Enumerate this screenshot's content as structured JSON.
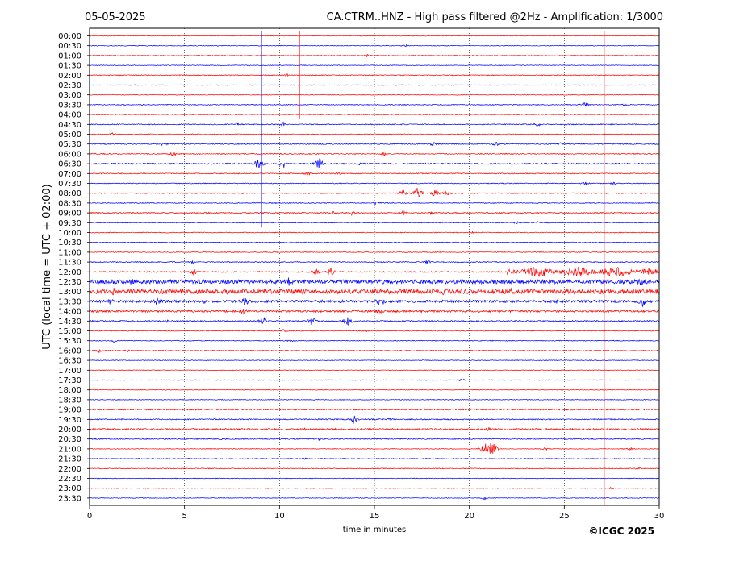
{
  "header": {
    "date": "05-05-2025",
    "title": "CA.CTRM..HNZ - High pass filtered @2Hz - Amplification: 1/3000"
  },
  "footer": {
    "copyright": "©ICGC 2025"
  },
  "colors": {
    "trace_red": "#ff0000",
    "trace_blue": "#0000ff",
    "grid": "#000000",
    "background": "#ffffff"
  },
  "chart_data": {
    "type": "line",
    "title": "CA.CTRM..HNZ - High pass filtered @2Hz - Amplification: 1/3000",
    "xlabel": "time in minutes",
    "ylabel": "UTC (local time = UTC + 02:00)",
    "xlim": [
      0,
      30
    ],
    "x_ticks": [
      "0",
      "5",
      "10",
      "15",
      "20",
      "25",
      "30"
    ],
    "x_tick_values": [
      0,
      5,
      10,
      15,
      20,
      25,
      30
    ],
    "x_grid": true,
    "row_colors": [
      "red",
      "blue"
    ],
    "rows": [
      {
        "label": "00:00",
        "noise": 0.4,
        "events": []
      },
      {
        "label": "00:30",
        "noise": 0.4,
        "events": [
          [
            16.6,
            2
          ]
        ]
      },
      {
        "label": "01:00",
        "noise": 0.4,
        "events": [
          [
            14.6,
            2
          ]
        ]
      },
      {
        "label": "01:30",
        "noise": 0.4,
        "events": []
      },
      {
        "label": "02:00",
        "noise": 0.5,
        "events": [
          [
            10.4,
            2
          ]
        ]
      },
      {
        "label": "02:30",
        "noise": 0.4,
        "events": []
      },
      {
        "label": "03:00",
        "noise": 0.4,
        "events": []
      },
      {
        "label": "03:30",
        "noise": 0.5,
        "events": [
          [
            26.1,
            4
          ],
          [
            28.2,
            2
          ]
        ]
      },
      {
        "label": "04:00",
        "noise": 0.4,
        "events": []
      },
      {
        "label": "04:30",
        "noise": 0.6,
        "events": [
          [
            7.8,
            3
          ],
          [
            10.2,
            3
          ],
          [
            23.6,
            3
          ]
        ]
      },
      {
        "label": "05:00",
        "noise": 0.5,
        "events": [
          [
            1.2,
            2
          ]
        ]
      },
      {
        "label": "05:30",
        "noise": 0.6,
        "events": [
          [
            3.9,
            3
          ],
          [
            18.1,
            3
          ],
          [
            21.4,
            3
          ],
          [
            24.8,
            2
          ]
        ]
      },
      {
        "label": "06:00",
        "noise": 0.6,
        "events": [
          [
            4.4,
            4
          ],
          [
            15.5,
            3
          ]
        ]
      },
      {
        "label": "06:30",
        "noise": 0.8,
        "events": [
          [
            8.9,
            9
          ],
          [
            10.2,
            6
          ],
          [
            12.1,
            9
          ],
          [
            14.2,
            2
          ]
        ]
      },
      {
        "label": "07:00",
        "noise": 0.6,
        "events": [
          [
            11.5,
            3
          ],
          [
            13.1,
            2
          ]
        ]
      },
      {
        "label": "07:30",
        "noise": 0.5,
        "events": [
          [
            26.1,
            3
          ],
          [
            27.6,
            2
          ]
        ]
      },
      {
        "label": "08:00",
        "noise": 0.6,
        "events": [
          [
            16.5,
            5
          ],
          [
            17.3,
            9
          ],
          [
            18.2,
            5
          ],
          [
            18.8,
            4
          ]
        ]
      },
      {
        "label": "08:30",
        "noise": 0.5,
        "events": [
          [
            15.0,
            3
          ],
          [
            29.6,
            2
          ]
        ]
      },
      {
        "label": "09:00",
        "noise": 0.7,
        "events": [
          [
            12.8,
            3
          ],
          [
            13.8,
            3
          ],
          [
            16.5,
            3
          ],
          [
            18.0,
            3
          ]
        ]
      },
      {
        "label": "09:30",
        "noise": 0.5,
        "events": [
          [
            22.5,
            2
          ],
          [
            23.6,
            2
          ]
        ]
      },
      {
        "label": "10:00",
        "noise": 0.5,
        "events": [
          [
            20.1,
            2
          ]
        ]
      },
      {
        "label": "10:30",
        "noise": 0.5,
        "events": []
      },
      {
        "label": "11:00",
        "noise": 0.5,
        "events": []
      },
      {
        "label": "11:30",
        "noise": 0.6,
        "events": [
          [
            5.4,
            2
          ],
          [
            17.8,
            3
          ]
        ]
      },
      {
        "label": "12:00",
        "noise": 0.7,
        "events": [
          [
            5.5,
            5
          ],
          [
            11.9,
            5
          ],
          [
            12.7,
            6
          ],
          [
            22.0,
            6,
            30.0
          ]
        ]
      },
      {
        "label": "12:30",
        "noise": 2.5,
        "events": [
          [
            2.2,
            5
          ],
          [
            10.5,
            8
          ],
          [
            16.2,
            4
          ],
          [
            29.0,
            7
          ]
        ]
      },
      {
        "label": "13:00",
        "noise": 2.8,
        "events": [
          [
            1.2,
            8
          ],
          [
            4.0,
            5
          ],
          [
            7.3,
            5
          ],
          [
            18.6,
            6
          ],
          [
            22.2,
            7
          ]
        ]
      },
      {
        "label": "13:30",
        "noise": 1.6,
        "events": [
          [
            1.1,
            5
          ],
          [
            3.6,
            8
          ],
          [
            6.0,
            4
          ],
          [
            8.2,
            8
          ],
          [
            15.3,
            10
          ],
          [
            24.6,
            3
          ],
          [
            29.1,
            9
          ]
        ]
      },
      {
        "label": "14:00",
        "noise": 1.3,
        "events": [
          [
            8.1,
            6
          ],
          [
            15.2,
            5
          ]
        ]
      },
      {
        "label": "14:30",
        "noise": 0.8,
        "events": [
          [
            9.1,
            8
          ],
          [
            11.7,
            6
          ],
          [
            13.6,
            8
          ],
          [
            4.1,
            2
          ]
        ]
      },
      {
        "label": "15:00",
        "noise": 0.5,
        "events": [
          [
            10.2,
            3
          ],
          [
            14.5,
            2
          ]
        ]
      },
      {
        "label": "15:30",
        "noise": 0.5,
        "events": [
          [
            1.3,
            2
          ],
          [
            10.6,
            2
          ]
        ]
      },
      {
        "label": "16:00",
        "noise": 0.5,
        "events": [
          [
            0.5,
            3
          ],
          [
            2.0,
            2
          ]
        ]
      },
      {
        "label": "16:30",
        "noise": 0.4,
        "events": []
      },
      {
        "label": "17:00",
        "noise": 0.4,
        "events": []
      },
      {
        "label": "17:30",
        "noise": 0.4,
        "events": [
          [
            19.6,
            2
          ]
        ]
      },
      {
        "label": "18:00",
        "noise": 0.4,
        "events": []
      },
      {
        "label": "18:30",
        "noise": 0.4,
        "events": []
      },
      {
        "label": "19:00",
        "noise": 0.8,
        "events": []
      },
      {
        "label": "19:30",
        "noise": 0.7,
        "events": [
          [
            13.9,
            6
          ],
          [
            15.8,
            2
          ]
        ]
      },
      {
        "label": "20:00",
        "noise": 1.0,
        "events": [
          [
            11.3,
            2
          ],
          [
            21.0,
            3
          ]
        ]
      },
      {
        "label": "20:30",
        "noise": 0.6,
        "events": [
          [
            7.0,
            2
          ],
          [
            12.1,
            2
          ]
        ]
      },
      {
        "label": "21:00",
        "noise": 0.4,
        "events": [
          [
            20.8,
            10
          ],
          [
            21.2,
            14
          ],
          [
            24.0,
            2
          ],
          [
            28.5,
            2
          ]
        ]
      },
      {
        "label": "21:30",
        "noise": 0.5,
        "events": [
          [
            11.3,
            2
          ]
        ]
      },
      {
        "label": "22:00",
        "noise": 0.5,
        "events": [
          [
            28.9,
            2
          ]
        ]
      },
      {
        "label": "22:30",
        "noise": 0.4,
        "events": []
      },
      {
        "label": "23:00",
        "noise": 0.4,
        "events": [
          [
            27.5,
            2
          ]
        ]
      },
      {
        "label": "23:30",
        "noise": 0.4,
        "events": [
          [
            20.8,
            2
          ]
        ]
      }
    ],
    "spikes": [
      {
        "x": 9.05,
        "from_row": 0,
        "to_row": 1,
        "color": "blue"
      },
      {
        "x": 11.05,
        "from_row": 0,
        "to_row": 8,
        "color": "red"
      },
      {
        "x": 9.05,
        "from_row": 2,
        "to_row": 19,
        "color": "blue"
      },
      {
        "x": 27.1,
        "from_row": 0,
        "to_row": 48,
        "color": "red"
      }
    ]
  }
}
